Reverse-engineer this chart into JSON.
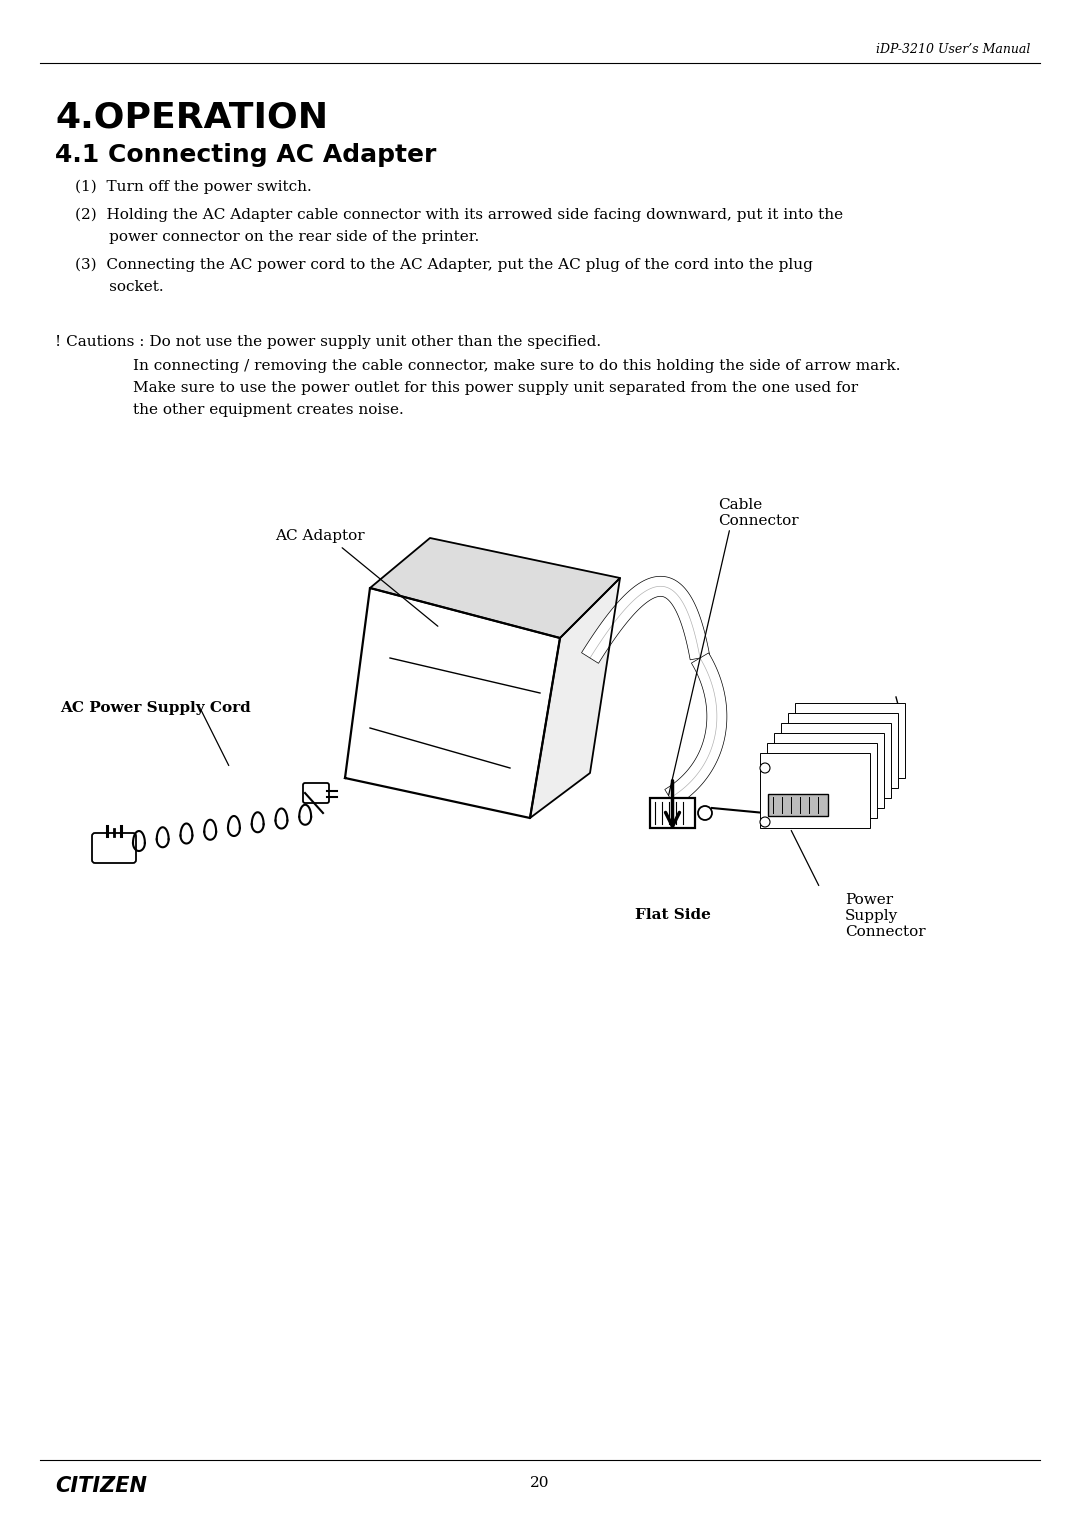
{
  "header_text": "iDP-3210 User’s Manual",
  "chapter_title": "4.OPERATION",
  "section_title": "4.1 Connecting AC Adapter",
  "step1": "(1)  Turn off the power switch.",
  "step2a": "(2)  Holding the AC Adapter cable connector with its arrowed side facing downward, put it into the",
  "step2b": "       power connector on the rear side of the printer.",
  "step3a": "(3)  Connecting the AC power cord to the AC Adapter, put the AC plug of the cord into the plug",
  "step3b": "       socket.",
  "caution1": "! Cautions : Do not use the power supply unit other than the specified.",
  "caution2": "                In connecting / removing the cable connector, make sure to do this holding the side of arrow mark.",
  "caution3": "                Make sure to use the power outlet for this power supply unit separated from the one used for",
  "caution4": "                the other equipment creates noise.",
  "label_ac_adaptor": "AC Adaptor",
  "label_cable_connector": "Cable\nConnector",
  "label_ac_power_cord": "AC Power Supply Cord",
  "label_flat_side": "Flat Side",
  "label_power_supply": "Power\nSupply\nConnector",
  "footer_left": "CITIZEN",
  "footer_page": "20",
  "bg_color": "#ffffff",
  "text_color": "#000000"
}
